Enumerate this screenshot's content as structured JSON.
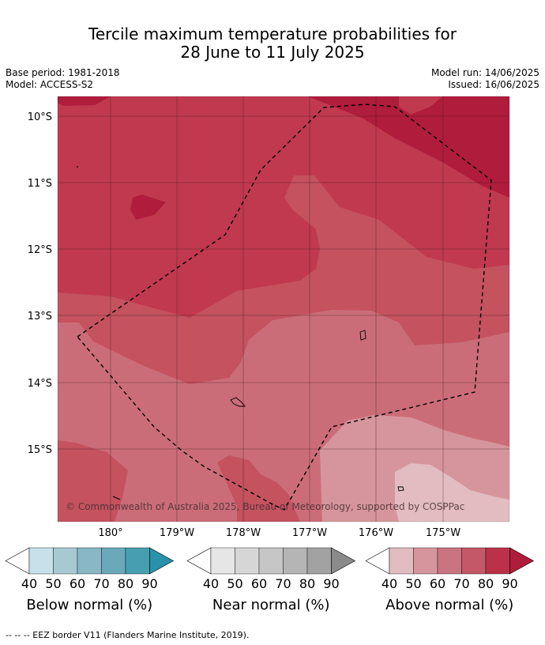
{
  "title_line1": "Tercile maximum temperature probabilities for",
  "title_line2": "28 June to 11 July 2025",
  "meta": {
    "base_period": "Base period: 1981-2018",
    "model": "Model: ACCESS-S2",
    "model_run": "Model run: 14/06/2025",
    "issued": "Issued: 16/06/2025"
  },
  "map": {
    "lat_labels": [
      "10°S",
      "11°S",
      "12°S",
      "13°S",
      "14°S",
      "15°S"
    ],
    "lon_labels": [
      "180°",
      "179°W",
      "178°W",
      "177°W",
      "176°W",
      "175°W"
    ],
    "copyright": "© Commonwealth of Australia 2025, Bureau of Meteorology, supported by COSPPac",
    "background_color": "#c0394f"
  },
  "legend": {
    "ticks": [
      "40",
      "50",
      "60",
      "70",
      "80",
      "90"
    ],
    "below": {
      "label": "Below normal (%)",
      "colors": [
        "#ffffff",
        "#c6e1ea",
        "#a7c9d1",
        "#88b8c6",
        "#69a9ba",
        "#469fb1",
        "#2a91ab"
      ]
    },
    "near": {
      "label": "Near normal (%)",
      "colors": [
        "#ffffff",
        "#e6e6e6",
        "#d6d6d6",
        "#c6c6c6",
        "#b5b5b5",
        "#a2a2a2",
        "#8a8a8a"
      ]
    },
    "above": {
      "label": "Above normal (%)",
      "colors": [
        "#ffffff",
        "#e2bcc1",
        "#d6959c",
        "#cb7481",
        "#c45768",
        "#ba3149",
        "#b01c3b"
      ]
    }
  },
  "footnote": "--  --  -- EEZ border V11 (Flanders Marine Institute, 2019)."
}
